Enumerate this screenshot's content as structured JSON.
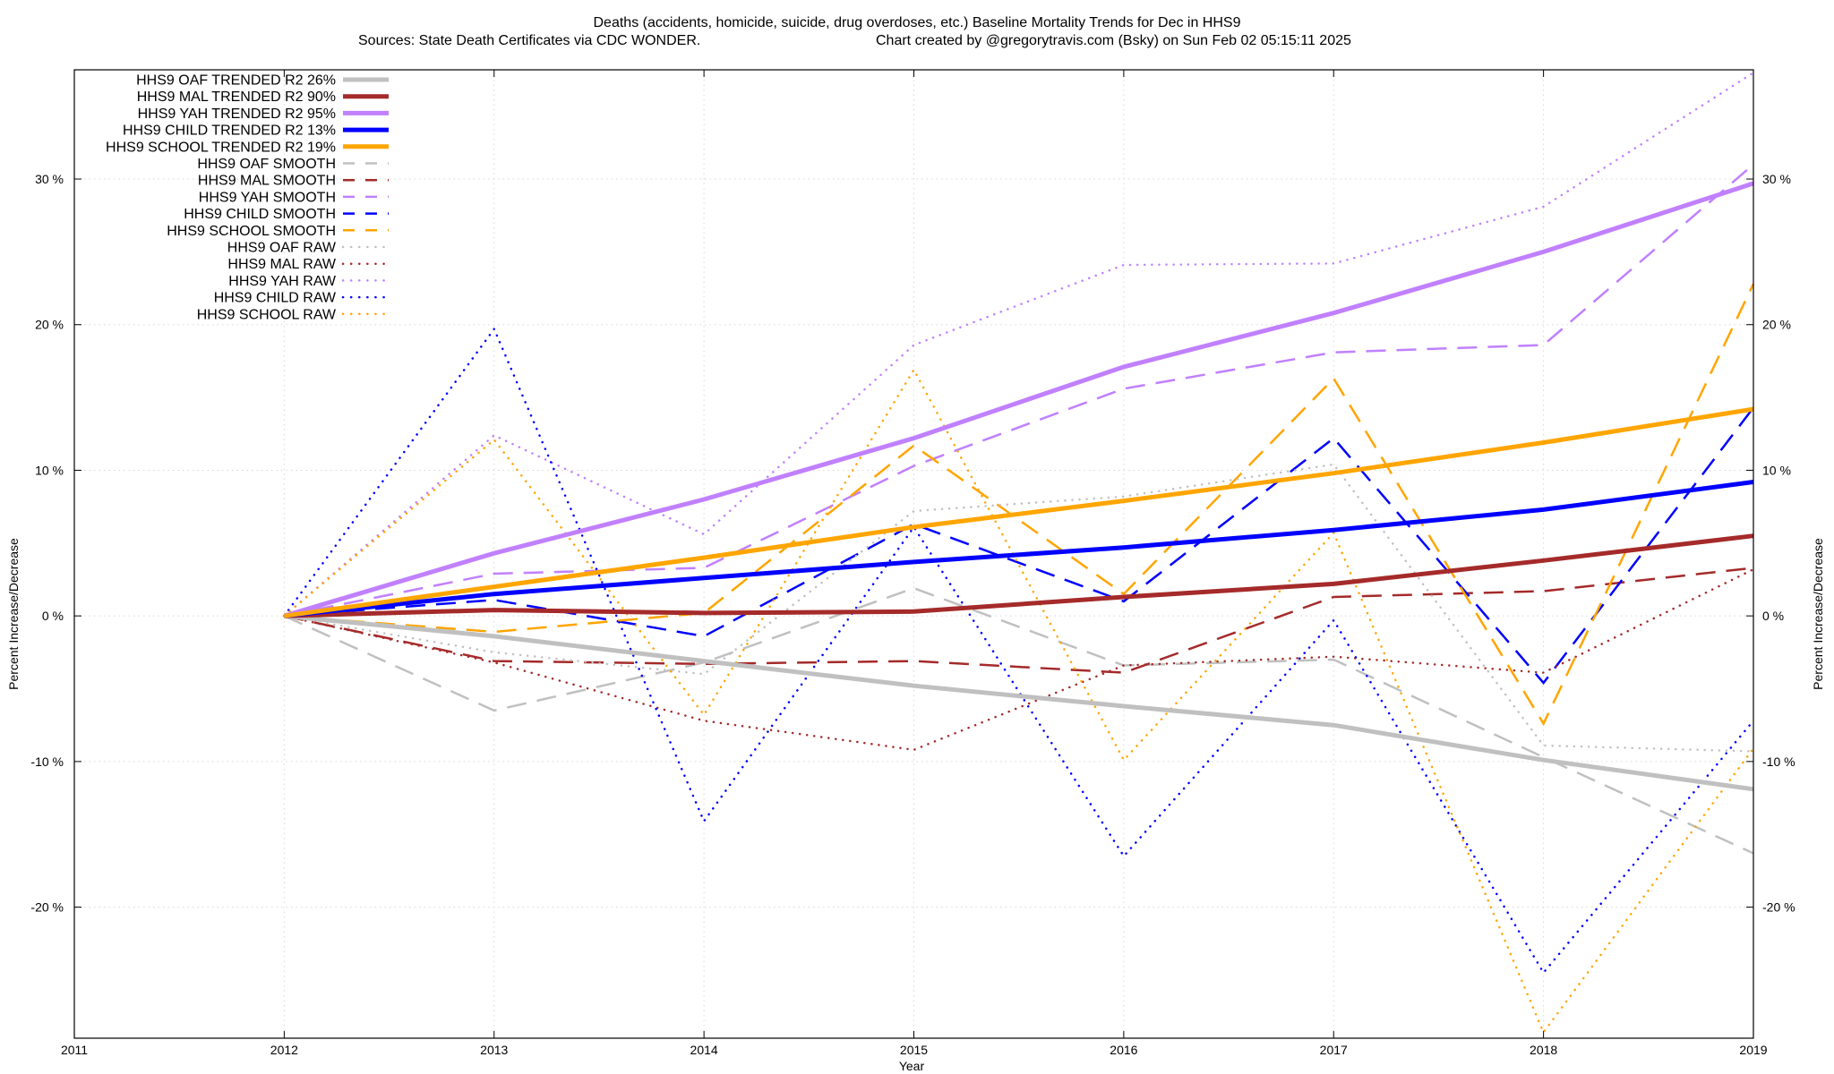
{
  "chart_data": {
    "type": "line",
    "title_line1": "Deaths (accidents, homicide, suicide, drug overdoses, etc.)  Baseline Mortality Trends for Dec in HHS9",
    "title_line2_left": "Sources: State Death Certificates via CDC WONDER.",
    "title_line2_right": "Chart created by @gregorytravis.com (Bsky) on Sun Feb 02 05:15:11 2025",
    "xlabel": "Year",
    "ylabel_left": "Percent Increase/Decrease",
    "ylabel_right": "Percent Increase/Decrease",
    "xlim": [
      2011,
      2019
    ],
    "ylim": [
      -29,
      37.5
    ],
    "x_ticks": [
      2011,
      2012,
      2013,
      2014,
      2015,
      2016,
      2017,
      2018,
      2019
    ],
    "x_tick_labels": [
      "2011",
      "2012",
      "2013",
      "2014",
      "2015",
      "2016",
      "2017",
      "2018",
      "2019"
    ],
    "y_ticks": [
      30,
      20,
      10,
      0,
      -10,
      -20
    ],
    "y_tick_labels": [
      "30 %",
      "20 %",
      "10 %",
      "0 %",
      "-10 %",
      "-20 %"
    ],
    "grid": true,
    "legend_position": "top-left",
    "x": [
      2012,
      2013,
      2014,
      2015,
      2016,
      2017,
      2018,
      2019
    ],
    "series": [
      {
        "name": "HHS9 OAF TRENDED R2  26%",
        "style": "solid",
        "color": "#c0c0c0",
        "values": [
          0,
          -1.4,
          -3.1,
          -4.8,
          -6.2,
          -7.5,
          -9.9,
          -11.9
        ]
      },
      {
        "name": "HHS9 MAL TRENDED R2  90%",
        "style": "solid",
        "color": "#a52a2a",
        "values": [
          0,
          0.4,
          0.2,
          0.3,
          1.3,
          2.2,
          3.8,
          5.5
        ]
      },
      {
        "name": "HHS9 YAH TRENDED R2  95%",
        "style": "solid",
        "color": "#c080ff",
        "values": [
          0,
          4.3,
          8.0,
          12.2,
          17.1,
          20.8,
          25.0,
          29.7
        ]
      },
      {
        "name": "HHS9 CHILD TRENDED R2  13%",
        "style": "solid",
        "color": "#0000ff",
        "values": [
          0,
          1.5,
          2.6,
          3.7,
          4.7,
          5.9,
          7.3,
          9.2
        ]
      },
      {
        "name": "HHS9 SCHOOL TRENDED R2  19%",
        "style": "solid",
        "color": "#ffa500",
        "values": [
          0,
          2.0,
          4.0,
          6.1,
          7.9,
          9.8,
          11.9,
          14.2
        ]
      },
      {
        "name": "HHS9 OAF SMOOTH",
        "style": "dashed",
        "color": "#c0c0c0",
        "values": [
          0,
          -6.5,
          -3.2,
          1.9,
          -3.4,
          -3.0,
          -9.7,
          -16.3
        ]
      },
      {
        "name": "HHS9 MAL SMOOTH",
        "style": "dashed",
        "color": "#a52a2a",
        "values": [
          0,
          -3.1,
          -3.3,
          -3.1,
          -3.9,
          1.3,
          1.7,
          3.3
        ]
      },
      {
        "name": "HHS9 YAH SMOOTH",
        "style": "dashed",
        "color": "#c080ff",
        "values": [
          0,
          2.9,
          3.3,
          10.3,
          15.6,
          18.1,
          18.6,
          31.0
        ]
      },
      {
        "name": "HHS9 CHILD SMOOTH",
        "style": "dashed",
        "color": "#0000ff",
        "values": [
          0,
          1.1,
          -1.4,
          6.3,
          1.0,
          12.2,
          -4.6,
          14.3
        ]
      },
      {
        "name": "HHS9 SCHOOL SMOOTH",
        "style": "dashed",
        "color": "#ffa500",
        "values": [
          0,
          -1.1,
          0.2,
          11.7,
          1.5,
          16.3,
          -7.4,
          22.8
        ]
      },
      {
        "name": "HHS9 OAF RAW",
        "style": "dotted",
        "color": "#c0c0c0",
        "values": [
          0,
          -2.5,
          -4.0,
          7.2,
          8.2,
          10.4,
          -8.9,
          -9.3
        ]
      },
      {
        "name": "HHS9 MAL RAW",
        "style": "dotted",
        "color": "#a52a2a",
        "values": [
          0,
          -3.2,
          -7.2,
          -9.2,
          -3.4,
          -2.8,
          -3.9,
          3.2
        ]
      },
      {
        "name": "HHS9 YAH RAW",
        "style": "dotted",
        "color": "#c080ff",
        "values": [
          0,
          12.4,
          5.6,
          18.6,
          24.1,
          24.2,
          28.1,
          37.3
        ]
      },
      {
        "name": "HHS9 CHILD RAW",
        "style": "dotted",
        "color": "#0000ff",
        "values": [
          0,
          19.7,
          -14.1,
          6.1,
          -16.5,
          -0.3,
          -24.5,
          -7.2
        ]
      },
      {
        "name": "HHS9 SCHOOL RAW",
        "style": "dotted",
        "color": "#ffa500",
        "values": [
          0,
          12.1,
          -6.8,
          16.9,
          -9.9,
          5.7,
          -28.6,
          -9.1
        ]
      }
    ]
  }
}
